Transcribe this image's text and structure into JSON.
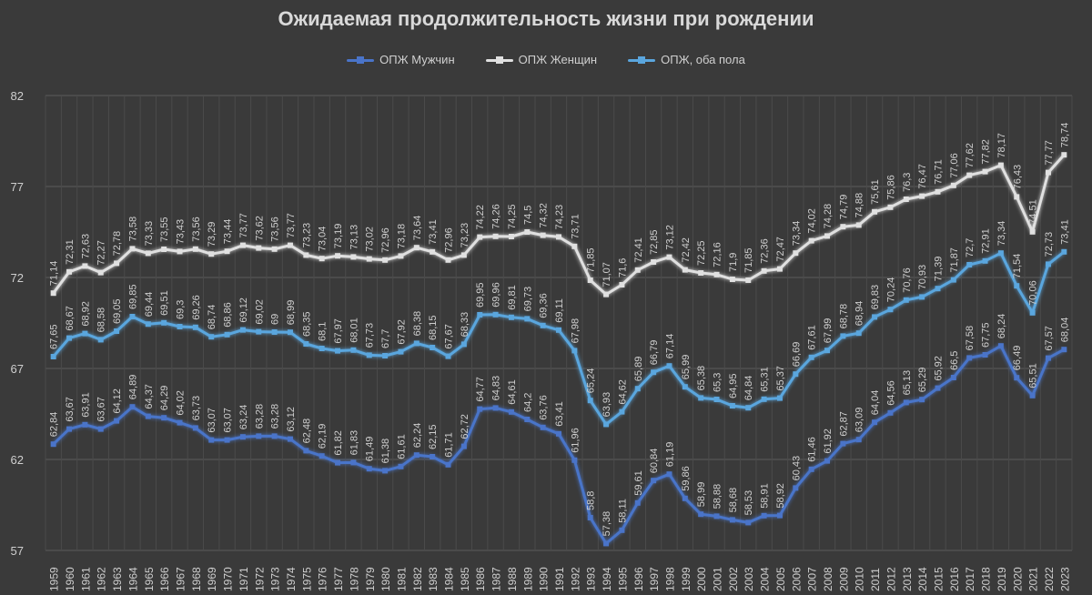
{
  "chart_data": {
    "type": "line",
    "title": "Ожидаемая продолжительность жизни при рождении",
    "xlabel": "",
    "ylabel": "",
    "ylim": [
      57,
      82
    ],
    "yticks": [
      57,
      62,
      67,
      72,
      77,
      82
    ],
    "grid": true,
    "legend": "top-center",
    "categories": [
      "1959",
      "1960",
      "1961",
      "1962",
      "1963",
      "1964",
      "1965",
      "1966",
      "1967",
      "1968",
      "1969",
      "1970",
      "1971",
      "1972",
      "1973",
      "1974",
      "1975",
      "1976",
      "1977",
      "1978",
      "1979",
      "1980",
      "1981",
      "1982",
      "1983",
      "1984",
      "1985",
      "1986",
      "1987",
      "1988",
      "1989",
      "1990",
      "1991",
      "1992",
      "1993",
      "1994",
      "1995",
      "1996",
      "1997",
      "1998",
      "1999",
      "2000",
      "2001",
      "2002",
      "2003",
      "2004",
      "2005",
      "2006",
      "2007",
      "2008",
      "2009",
      "2010",
      "2011",
      "2012",
      "2013",
      "2014",
      "2015",
      "2016",
      "2017",
      "2018",
      "2019",
      "2020",
      "2021",
      "2022",
      "2023"
    ],
    "series": [
      {
        "name": "ОПЖ Мужчин",
        "color": "#4a74c9",
        "values": [
          62.84,
          63.67,
          63.91,
          63.67,
          64.12,
          64.89,
          64.37,
          64.29,
          64.02,
          63.73,
          63.07,
          63.07,
          63.24,
          63.28,
          63.28,
          63.12,
          62.48,
          62.19,
          61.82,
          61.83,
          61.49,
          61.38,
          61.61,
          62.24,
          62.15,
          61.71,
          62.72,
          64.77,
          64.83,
          64.61,
          64.2,
          63.76,
          63.41,
          61.96,
          58.8,
          57.38,
          58.11,
          59.61,
          60.84,
          61.19,
          59.86,
          58.99,
          58.88,
          58.68,
          58.53,
          58.91,
          58.92,
          60.43,
          61.46,
          61.92,
          62.87,
          63.09,
          64.04,
          64.56,
          65.13,
          65.29,
          65.92,
          66.5,
          67.58,
          67.75,
          68.24,
          66.49,
          65.51,
          67.57,
          68.04
        ],
        "labels": [
          "62,84",
          "63,67",
          "63,91",
          "63,67",
          "64,12",
          "64,89",
          "64,37",
          "64,29",
          "64,02",
          "63,73",
          "63,07",
          "63,07",
          "63,24",
          "63,28",
          "63,28",
          "63,12",
          "62,48",
          "62,19",
          "61,82",
          "61,83",
          "61,49",
          "61,38",
          "61,61",
          "62,24",
          "62,15",
          "61,71",
          "62,72",
          "64,77",
          "64,83",
          "64,61",
          "64,2",
          "63,76",
          "63,41",
          "61,96",
          "58,8",
          "57,38",
          "58,11",
          "59,61",
          "60,84",
          "61,19",
          "59,86",
          "58,99",
          "58,88",
          "58,68",
          "58,53",
          "58,91",
          "58,92",
          "60,43",
          "61,46",
          "61,92",
          "62,87",
          "63,09",
          "64,04",
          "64,56",
          "65,13",
          "65,29",
          "65,92",
          "66,5",
          "67,58",
          "67,75",
          "68,24",
          "66,49",
          "65,51",
          "67,57",
          "68,04"
        ]
      },
      {
        "name": "ОПЖ Женщин",
        "color": "#e0e0e0",
        "values": [
          71.14,
          72.31,
          72.63,
          72.27,
          72.78,
          73.58,
          73.33,
          73.55,
          73.43,
          73.56,
          73.29,
          73.44,
          73.77,
          73.62,
          73.56,
          73.77,
          73.23,
          73.04,
          73.19,
          73.13,
          73.02,
          72.96,
          73.18,
          73.64,
          73.41,
          72.96,
          73.23,
          74.22,
          74.26,
          74.25,
          74.5,
          74.32,
          74.23,
          73.71,
          71.85,
          71.07,
          71.6,
          72.41,
          72.85,
          73.12,
          72.42,
          72.25,
          72.16,
          71.9,
          71.85,
          72.36,
          72.47,
          73.34,
          74.02,
          74.28,
          74.79,
          74.88,
          75.61,
          75.86,
          76.3,
          76.47,
          76.71,
          77.06,
          77.62,
          77.82,
          78.17,
          76.43,
          74.51,
          77.77,
          78.74
        ],
        "labels": [
          "71,14",
          "72,31",
          "72,63",
          "72,27",
          "72,78",
          "73,58",
          "73,33",
          "73,55",
          "73,43",
          "73,56",
          "73,29",
          "73,44",
          "73,77",
          "73,62",
          "73,56",
          "73,77",
          "73,23",
          "73,04",
          "73,19",
          "73,13",
          "73,02",
          "72,96",
          "73,18",
          "73,64",
          "73,41",
          "72,96",
          "73,23",
          "74,22",
          "74,26",
          "74,25",
          "74,5",
          "74,32",
          "74,23",
          "73,71",
          "71,85",
          "71,07",
          "71,6",
          "72,41",
          "72,85",
          "73,12",
          "72,42",
          "72,25",
          "72,16",
          "71,9",
          "71,85",
          "72,36",
          "72,47",
          "73,34",
          "74,02",
          "74,28",
          "74,79",
          "74,88",
          "75,61",
          "75,86",
          "76,3",
          "76,47",
          "76,71",
          "77,06",
          "77,62",
          "77,82",
          "78,17",
          "76,43",
          "74,51",
          "77,77",
          "78,74"
        ]
      },
      {
        "name": "ОПЖ, оба пола",
        "color": "#5aa6de",
        "values": [
          67.65,
          68.67,
          68.92,
          68.58,
          69.05,
          69.85,
          69.44,
          69.51,
          69.3,
          69.26,
          68.74,
          68.86,
          69.12,
          69.02,
          69,
          68.99,
          68.35,
          68.1,
          67.97,
          68.01,
          67.73,
          67.7,
          67.92,
          68.38,
          68.15,
          67.67,
          68.33,
          69.95,
          69.96,
          69.81,
          69.73,
          69.36,
          69.11,
          67.98,
          65.24,
          63.93,
          64.62,
          65.89,
          66.79,
          67.14,
          65.99,
          65.38,
          65.3,
          64.95,
          64.84,
          65.31,
          65.37,
          66.69,
          67.61,
          67.99,
          68.78,
          68.94,
          69.83,
          70.24,
          70.76,
          70.93,
          71.39,
          71.87,
          72.7,
          72.91,
          73.34,
          71.54,
          70.06,
          72.73,
          73.41
        ],
        "labels": [
          "67,65",
          "68,67",
          "68,92",
          "68,58",
          "69,05",
          "69,85",
          "69,44",
          "69,51",
          "69,3",
          "69,26",
          "68,74",
          "68,86",
          "69,12",
          "69,02",
          "69",
          "68,99",
          "68,35",
          "68,1",
          "67,97",
          "68,01",
          "67,73",
          "67,7",
          "67,92",
          "68,38",
          "68,15",
          "67,67",
          "68,33",
          "69,95",
          "69,96",
          "69,81",
          "69,73",
          "69,36",
          "69,11",
          "67,98",
          "65,24",
          "63,93",
          "64,62",
          "65,89",
          "66,79",
          "67,14",
          "65,99",
          "65,38",
          "65,3",
          "64,95",
          "64,84",
          "65,31",
          "65,37",
          "66,69",
          "67,61",
          "67,99",
          "68,78",
          "68,94",
          "69,83",
          "70,24",
          "70,76",
          "70,93",
          "71,39",
          "71,87",
          "72,7",
          "72,91",
          "73,34",
          "71,54",
          "70,06",
          "72,73",
          "73,41"
        ]
      }
    ]
  }
}
